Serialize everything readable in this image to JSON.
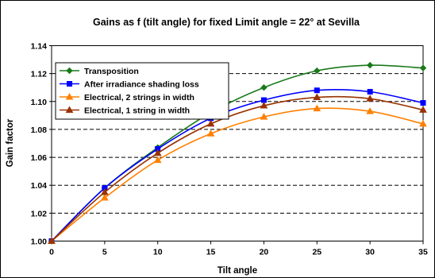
{
  "chart_data": {
    "type": "line",
    "title": "Gains as f (tilt angle)  for fixed Limit angle = 22° at Sevilla",
    "xlabel": "Tilt angle",
    "ylabel": "Gain factor",
    "xlim": [
      0,
      35
    ],
    "ylim": [
      1.0,
      1.14
    ],
    "x_ticks": [
      "0",
      "5",
      "10",
      "15",
      "20",
      "25",
      "30",
      "35"
    ],
    "y_ticks": [
      "1.00",
      "1.02",
      "1.04",
      "1.06",
      "1.08",
      "1.10",
      "1.12",
      "1.14"
    ],
    "grid": "horizontal",
    "legend_position": "top-left",
    "x": [
      0,
      5,
      10,
      15,
      20,
      25,
      30,
      35
    ],
    "series": [
      {
        "name": "Transposition",
        "color": "#1a7a1a",
        "marker": "diamond",
        "values": [
          1.0,
          1.038,
          1.067,
          1.092,
          1.11,
          1.122,
          1.126,
          1.124
        ]
      },
      {
        "name": "After irradiance shading loss",
        "color": "#0000ff",
        "marker": "square",
        "values": [
          1.0,
          1.038,
          1.066,
          1.088,
          1.101,
          1.108,
          1.107,
          1.099
        ]
      },
      {
        "name": "Electrical, 2 strings in width",
        "color": "#ff8000",
        "marker": "triangle",
        "values": [
          1.0,
          1.031,
          1.058,
          1.077,
          1.089,
          1.095,
          1.093,
          1.084
        ]
      },
      {
        "name": "Electrical, 1 string in width",
        "color": "#993300",
        "marker": "triangle",
        "values": [
          1.0,
          1.035,
          1.063,
          1.084,
          1.097,
          1.103,
          1.102,
          1.094
        ]
      }
    ]
  }
}
